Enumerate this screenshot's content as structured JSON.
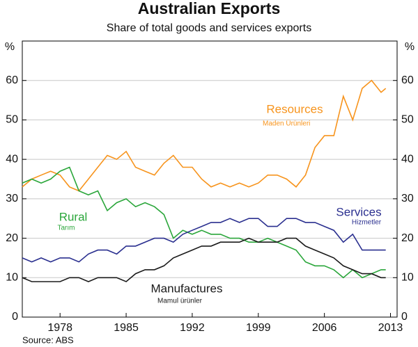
{
  "chart_data": {
    "type": "line",
    "title": "Australian Exports",
    "subtitle": "Share of total goods and services exports",
    "ylabel": "%",
    "y2label": "%",
    "source": "Source: ABS",
    "x": [
      1974,
      1975,
      1976,
      1977,
      1978,
      1979,
      1980,
      1981,
      1982,
      1983,
      1984,
      1985,
      1986,
      1987,
      1988,
      1989,
      1990,
      1991,
      1992,
      1993,
      1994,
      1995,
      1996,
      1997,
      1998,
      1999,
      2000,
      2001,
      2002,
      2003,
      2004,
      2005,
      2006,
      2007,
      2008,
      2009,
      2010,
      2011,
      2012,
      2012.5
    ],
    "xlim": [
      1974,
      2013.7
    ],
    "xticks": [
      1978,
      1985,
      1992,
      1999,
      2006,
      2013
    ],
    "ylim": [
      0,
      70
    ],
    "yticks": [
      0,
      10,
      20,
      30,
      40,
      50,
      60
    ],
    "y2lim": [
      0,
      70
    ],
    "y2ticks": [
      0,
      10,
      20,
      30,
      40,
      50,
      60
    ],
    "grid": true,
    "series": [
      {
        "name": "Resources",
        "color": "#f7941d",
        "values": [
          33,
          35,
          36,
          37,
          36,
          33,
          32,
          35,
          38,
          41,
          40,
          42,
          38,
          37,
          36,
          39,
          41,
          38,
          38,
          35,
          33,
          34,
          33,
          34,
          33,
          34,
          36,
          36,
          35,
          33,
          36,
          43,
          46,
          46,
          56,
          50,
          58,
          60,
          57,
          58
        ]
      },
      {
        "name": "Rural",
        "color": "#2aa63a",
        "values": [
          34,
          35,
          34,
          35,
          37,
          38,
          32,
          31,
          32,
          27,
          29,
          30,
          28,
          29,
          28,
          26,
          20,
          22,
          21,
          22,
          21,
          21,
          20,
          20,
          19,
          19,
          20,
          19,
          18,
          17,
          14,
          13,
          13,
          12,
          10,
          12,
          10,
          11,
          12,
          12
        ]
      },
      {
        "name": "Services",
        "color": "#2a2f8f",
        "values": [
          15,
          14,
          15,
          14,
          15,
          15,
          14,
          16,
          17,
          17,
          16,
          18,
          18,
          19,
          20,
          20,
          19,
          21,
          22,
          23,
          24,
          24,
          25,
          24,
          25,
          25,
          23,
          23,
          25,
          25,
          24,
          24,
          23,
          22,
          19,
          21,
          17,
          17,
          17,
          17
        ]
      },
      {
        "name": "Manufactures",
        "color": "#1a1a1a",
        "values": [
          10,
          9,
          9,
          9,
          9,
          10,
          10,
          9,
          10,
          10,
          10,
          9,
          11,
          12,
          12,
          13,
          15,
          16,
          17,
          18,
          18,
          19,
          19,
          19,
          20,
          19,
          19,
          19,
          20,
          20,
          18,
          17,
          16,
          15,
          13,
          12,
          11,
          11,
          10,
          10
        ]
      }
    ],
    "annotations": [
      "Maden Ürünleri",
      "Tarım",
      "Hizmetler",
      "Mamul ürünler"
    ]
  }
}
